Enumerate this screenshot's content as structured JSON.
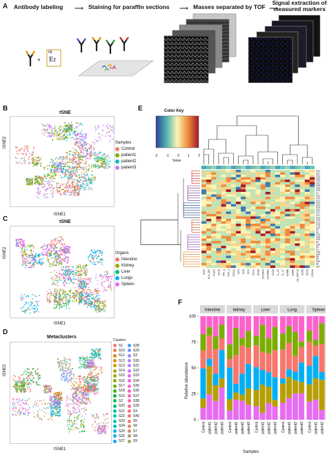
{
  "panelA": {
    "letter": "A",
    "steps": [
      "Antibody labeling",
      "Staining for paraffin sections",
      "Masses separated by TOF",
      "Signal extraction of measured markers"
    ],
    "plus": "+",
    "er_label": "Er",
    "er_mass": "68"
  },
  "panelB": {
    "letter": "B",
    "title": "tSNE",
    "xlabel": "tSNE1",
    "ylabel": "tSNE2",
    "legend_title": "Samples",
    "legend": [
      {
        "label": "Control",
        "color": "#f8766d"
      },
      {
        "label": "patient1",
        "color": "#7cae00"
      },
      {
        "label": "patient2",
        "color": "#00bfc4"
      },
      {
        "label": "patient3",
        "color": "#c77cff"
      }
    ]
  },
  "panelC": {
    "letter": "C",
    "title": "tSNE",
    "xlabel": "tSNE1",
    "ylabel": "tSNE2",
    "legend_title": "Organs",
    "legend": [
      {
        "label": "Intestine",
        "color": "#f8766d"
      },
      {
        "label": "Kidney",
        "color": "#a3a500"
      },
      {
        "label": "Liver",
        "color": "#00bf7d"
      },
      {
        "label": "Lungs",
        "color": "#00b0f6"
      },
      {
        "label": "Spleen",
        "color": "#e76bf3"
      }
    ]
  },
  "panelD": {
    "letter": "D",
    "title": "Metaclusters",
    "xlabel": "tSNE1",
    "ylabel": "tSNE2",
    "legend_title": "Clusters",
    "clusters_col1": [
      "S1",
      "S10",
      "S11",
      "S12",
      "S13",
      "S14",
      "S15",
      "S16",
      "S17",
      "S18",
      "S19",
      "S2",
      "S20",
      "S21",
      "S22",
      "S23",
      "S24",
      "S25",
      "S26",
      "S27"
    ],
    "clusters_col2": [
      "S28",
      "S29",
      "S3",
      "S30",
      "S31",
      "S32",
      "S33",
      "S34",
      "S35",
      "S36",
      "S37",
      "S38",
      "S39",
      "S4",
      "S40",
      "S5",
      "S6",
      "S7",
      "S8",
      "S9"
    ],
    "palette": [
      "#f8766d",
      "#f07f3e",
      "#e58700",
      "#d89000",
      "#c99800",
      "#b79f00",
      "#a3a500",
      "#8bab00",
      "#6bb100",
      "#39b600",
      "#00ba38",
      "#00bd5c",
      "#00bf7d",
      "#00c19a",
      "#00c0b5",
      "#00bfc4",
      "#00bcd8",
      "#00b6eb",
      "#00b0f6",
      "#00a5ff",
      "#35a2ff",
      "#7997ff",
      "#9590ff",
      "#ac88ff",
      "#c17fff",
      "#d277ff",
      "#e76bf3",
      "#f265e7",
      "#fa62db",
      "#ff61cc",
      "#ff63b6",
      "#ff67a4",
      "#ff6c91",
      "#fb727d",
      "#f4786b",
      "#e6816a",
      "#d88a6c",
      "#c9916e",
      "#b89871",
      "#a89d73"
    ]
  },
  "panelE": {
    "letter": "E",
    "color_key_title": "Color Key",
    "color_key_ticks": [
      "-2",
      "-1",
      "0",
      "1",
      "2"
    ],
    "color_key_label": "Value",
    "markers": [
      "IRF2",
      "HLA_DR",
      "FoxP3",
      "CD19",
      "IFN_g",
      "TNF_a",
      "CD11c",
      "CD3",
      "CD8",
      "CD4",
      "CD14",
      "CD68",
      "CD45RA",
      "CD45RO",
      "CD25",
      "IL_10",
      "IL_17",
      "GZMB",
      "aSMA",
      "CK_KRT19",
      "CD56",
      "CD16",
      "CD11b"
    ],
    "rows": [
      "S32",
      "S37",
      "S34",
      "S35",
      "S16",
      "S31",
      "S28",
      "S26",
      "S20",
      "S1",
      "S12",
      "S14",
      "S21",
      "S33",
      "S29",
      "S10",
      "S23",
      "S17",
      "S11",
      "S22",
      "S25",
      "S13",
      "S15",
      "S18",
      "S2",
      "S4",
      "S19",
      "S38",
      "S30",
      "S9",
      "S24",
      "S3",
      "S7",
      "S36",
      "S39",
      "S8",
      "S5",
      "S40",
      "S6",
      "S27"
    ]
  },
  "panelF": {
    "letter": "F",
    "ylabel": "Relative abundance",
    "xlabel": "Samples",
    "y_ticks": [
      "0",
      "25",
      "50",
      "75",
      "100"
    ],
    "facets": [
      "Intestine",
      "kidney",
      "Liver",
      "Lung",
      "Spleen"
    ],
    "samples": [
      "Control",
      "patient1",
      "patient2",
      "patient3"
    ],
    "segment_colors": [
      "#e76bf3",
      "#b79f00",
      "#00b0f6",
      "#f8766d",
      "#7cae00",
      "#ff61cc"
    ]
  }
}
